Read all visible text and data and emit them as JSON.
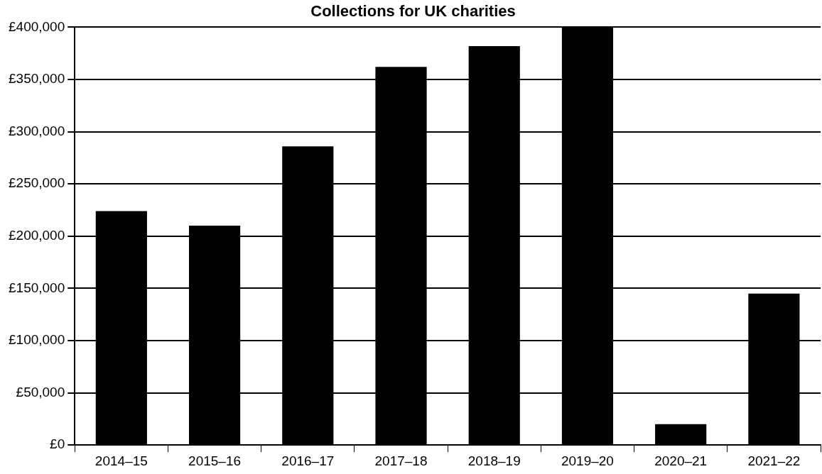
{
  "chart_data": {
    "type": "bar",
    "title": "Collections for UK charities",
    "categories": [
      "2014–15",
      "2015–16",
      "2016–17",
      "2017–18",
      "2018–19",
      "2019–20",
      "2020–21",
      "2021–22"
    ],
    "values": [
      224000,
      210000,
      286000,
      362000,
      382000,
      400000,
      20000,
      145000
    ],
    "color": "#000000",
    "ylim": [
      0,
      400000
    ],
    "yticks": [
      {
        "value": 0,
        "label": "£0"
      },
      {
        "value": 50000,
        "label": "£50,000"
      },
      {
        "value": 100000,
        "label": "£100,000"
      },
      {
        "value": 150000,
        "label": "£150,000"
      },
      {
        "value": 200000,
        "label": "£200,000"
      },
      {
        "value": 250000,
        "label": "£250,000"
      },
      {
        "value": 300000,
        "label": "£300,000"
      },
      {
        "value": 350000,
        "label": "£350,000"
      },
      {
        "value": 400000,
        "label": "£400,000"
      }
    ],
    "grid": "y",
    "legend": false
  }
}
